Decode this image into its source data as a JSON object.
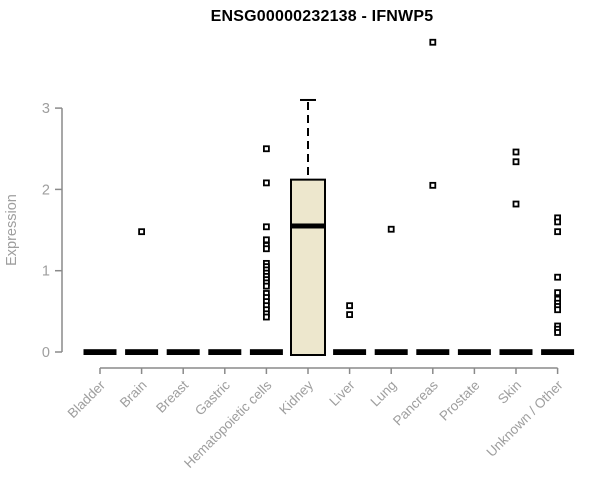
{
  "chart_data": {
    "type": "boxplot",
    "title": "ENSG00000232138 - IFNWP5",
    "ylabel": "Expression",
    "xlabel": "",
    "ylim": [
      0,
      3.2
    ],
    "yticks": [
      0,
      1,
      2,
      3
    ],
    "grid": false,
    "legend": null,
    "outlier_marker": "small-open-square",
    "boxes": [
      {
        "category": "Bladder",
        "q1": 0,
        "median": 0,
        "q3": 0,
        "whisker_high": 0,
        "outliers": []
      },
      {
        "category": "Brain",
        "q1": 0,
        "median": 0,
        "q3": 0,
        "whisker_high": 0,
        "outliers": [
          1.48
        ]
      },
      {
        "category": "Breast",
        "q1": 0,
        "median": 0,
        "q3": 0,
        "whisker_high": 0,
        "outliers": []
      },
      {
        "category": "Gastric",
        "q1": 0,
        "median": 0,
        "q3": 0,
        "whisker_high": 0,
        "outliers": []
      },
      {
        "category": "Hematopoietic cells",
        "q1": 0,
        "median": 0,
        "q3": 0,
        "whisker_high": 0,
        "outliers": [
          2.5,
          2.08,
          1.54,
          1.38,
          1.31,
          1.27,
          1.09,
          1.05,
          1.01,
          0.97,
          0.93,
          0.89,
          0.85,
          0.81,
          0.72,
          0.67,
          0.62,
          0.57,
          0.52,
          0.47,
          0.43
        ]
      },
      {
        "category": "Kidney",
        "q1": 0,
        "median": 1.55,
        "q3": 2.12,
        "whisker_high": 3.1,
        "outliers": []
      },
      {
        "category": "Liver",
        "q1": 0,
        "median": 0,
        "q3": 0,
        "whisker_high": 0,
        "outliers": [
          0.57,
          0.46
        ]
      },
      {
        "category": "Lung",
        "q1": 0,
        "median": 0,
        "q3": 0,
        "whisker_high": 0,
        "outliers": [
          1.51
        ]
      },
      {
        "category": "Pancreas",
        "q1": 0,
        "median": 0,
        "q3": 0,
        "whisker_high": 0,
        "outliers": [
          3.81,
          2.05
        ]
      },
      {
        "category": "Prostate",
        "q1": 0,
        "median": 0,
        "q3": 0,
        "whisker_high": 0,
        "outliers": []
      },
      {
        "category": "Skin",
        "q1": 0,
        "median": 0,
        "q3": 0,
        "whisker_high": 0,
        "outliers": [
          2.46,
          2.34,
          1.82
        ]
      },
      {
        "category": "Unknown / Other",
        "q1": 0,
        "median": 0,
        "q3": 0,
        "whisker_high": 0,
        "outliers": [
          1.65,
          1.6,
          1.48,
          0.92,
          0.73,
          0.65,
          0.6,
          0.56,
          0.52,
          0.32,
          0.28,
          0.24
        ]
      }
    ],
    "colors": {
      "background": "#ffffff",
      "box_fill": "#ede7cd",
      "box_border": "#000000",
      "median": "#000000",
      "whisker": "#000000",
      "axis": "#8a8a8a",
      "tick_text": "#9e9e9e",
      "title": "#000000"
    }
  }
}
